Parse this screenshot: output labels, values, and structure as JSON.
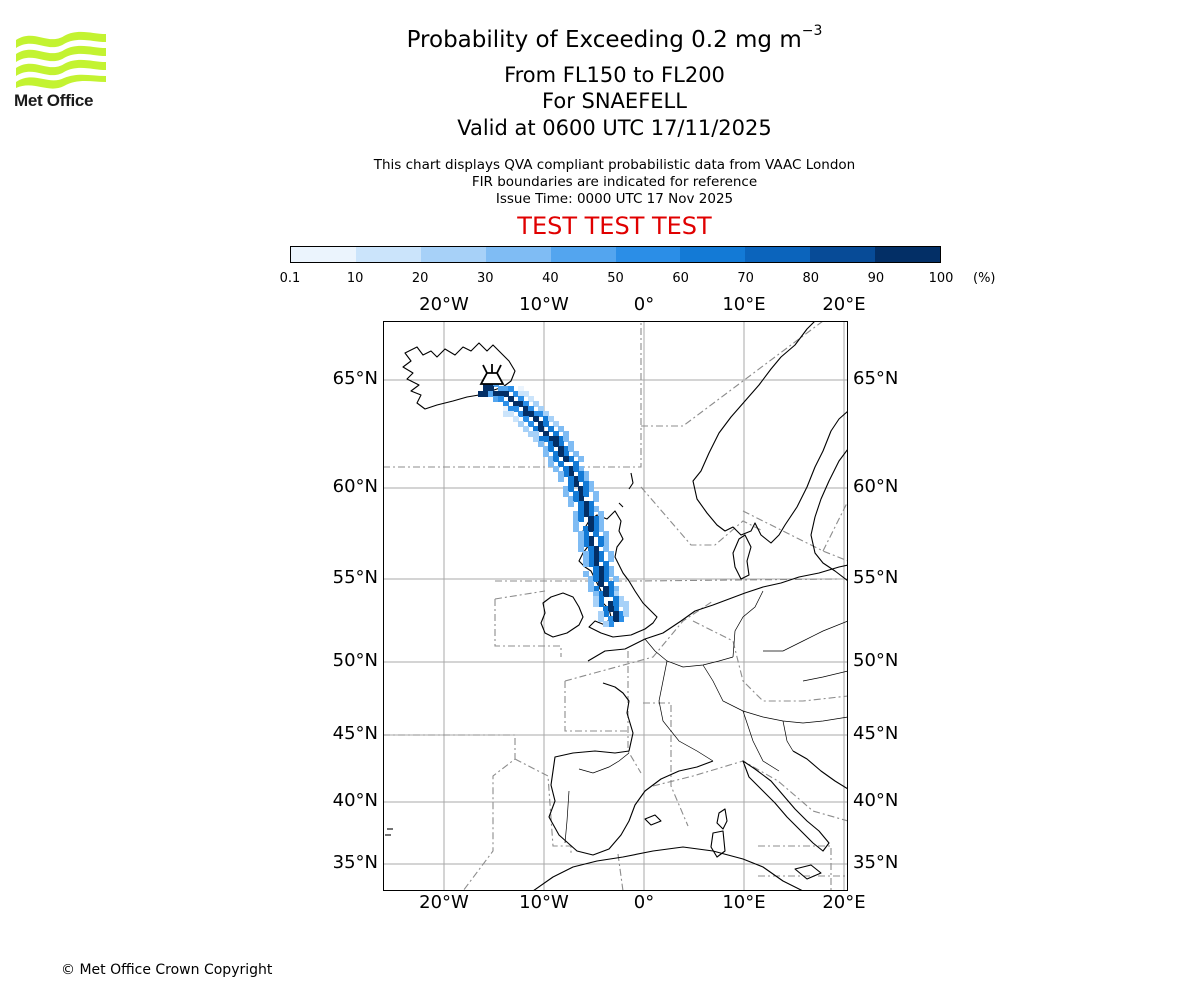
{
  "logo": {
    "text": "Met Office"
  },
  "header": {
    "title_main": "Probability of Exceeding 0.2 mg m",
    "title_sup": "−3",
    "level_range": "From FL150 to FL200",
    "volcano": "For SNAEFELL",
    "valid_time": "Valid at 0600 UTC 17/11/2025",
    "info_line1": "This chart displays QVA compliant probabilistic data from VAAC London",
    "info_line2": "FIR boundaries are indicated for reference",
    "issue_time": "Issue Time: 0000 UTC 17 Nov 2025",
    "test_banner": "TEST TEST TEST"
  },
  "colorbar": {
    "ticks": [
      "0.1",
      "10",
      "20",
      "30",
      "40",
      "50",
      "60",
      "70",
      "80",
      "90",
      "100"
    ],
    "unit": "(%)",
    "colors": [
      "#ebf4fd",
      "#cbe4fb",
      "#a7d1f8",
      "#7fbcf4",
      "#53a5ef",
      "#2b8ee7",
      "#137ad6",
      "#0b64bc",
      "#074b97",
      "#032f66"
    ]
  },
  "map": {
    "lon_labels": [
      "20°W",
      "10°W",
      "0°",
      "10°E",
      "20°E"
    ],
    "lat_labels": [
      "65°N",
      "60°N",
      "55°N",
      "50°N",
      "45°N",
      "40°N",
      "35°N"
    ],
    "volcano_name": "SNAEFELL",
    "volcano_location": {
      "lat": 64.8,
      "lon": -16.6
    },
    "plume": {
      "description_level": "FL150-FL200",
      "path_lat": [
        64.8,
        64.4,
        63.5,
        62.3,
        60.9,
        59.3,
        57.8,
        56.3,
        54.8,
        53.5,
        52.5
      ],
      "path_lon": [
        -16.3,
        -14.0,
        -11.5,
        -9.3,
        -7.5,
        -6.2,
        -5.6,
        -5.0,
        -4.4,
        -3.6,
        -2.9
      ],
      "max_probability_pct": 100
    }
  },
  "footer": {
    "copyright": "© Met Office Crown Copyright"
  }
}
